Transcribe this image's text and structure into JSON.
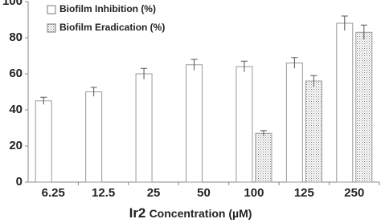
{
  "chart_data": {
    "type": "bar",
    "xlabel": [
      "Ir2",
      "Concentration (µM)"
    ],
    "categories": [
      "6.25",
      "12.5",
      "25",
      "50",
      "100",
      "125",
      "250"
    ],
    "series": [
      {
        "name": "Biofilm Inhibition (%)",
        "color": "#ffffff",
        "pattern": "none",
        "values": [
          45,
          50,
          60,
          65,
          64,
          66,
          88
        ],
        "errors": [
          2,
          2.5,
          3,
          3,
          3,
          3,
          4
        ]
      },
      {
        "name": "Biofilm Eradication (%)",
        "color": "#ffffff",
        "pattern": "dots",
        "values": [
          null,
          null,
          null,
          null,
          27,
          56,
          83
        ],
        "errors": [
          null,
          null,
          null,
          null,
          1.5,
          3,
          4
        ]
      }
    ],
    "ylim": [
      0,
      100
    ],
    "yticks": [
      0,
      20,
      40,
      60,
      80,
      100
    ],
    "grid": false,
    "legend": "top-left"
  }
}
